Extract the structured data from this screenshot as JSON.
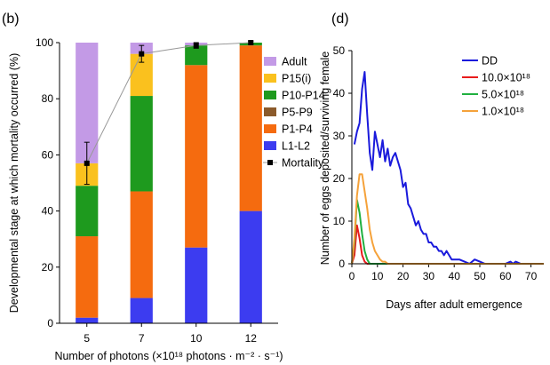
{
  "chart_data": [
    {
      "panel": "(b)",
      "type": "bar",
      "stacked": true,
      "categories": [
        "5",
        "7",
        "10",
        "12"
      ],
      "xlabel": "Number of photons (×10¹⁸ photons · m⁻² · s⁻¹)",
      "ylabel": "Developmental stage at which mortality occurred (%)",
      "ylim": [
        0,
        100
      ],
      "yticks": [
        0,
        20,
        40,
        60,
        80,
        100
      ],
      "legend_position": "right",
      "series": [
        {
          "name": "L1-L2",
          "color": "#3c3cf0",
          "values": [
            2,
            9,
            27,
            40
          ]
        },
        {
          "name": "P1-P4",
          "color": "#f56b0f",
          "values": [
            29,
            38,
            65,
            59
          ]
        },
        {
          "name": "P5-P9",
          "color": "#8b5a2b",
          "values": [
            0,
            0,
            0,
            0
          ]
        },
        {
          "name": "P10-P14",
          "color": "#1e9a1e",
          "values": [
            18,
            34,
            7,
            1
          ]
        },
        {
          "name": "P15(i)",
          "color": "#fac11e",
          "values": [
            8,
            15,
            0,
            0
          ]
        },
        {
          "name": "Adult",
          "color": "#c39ae6",
          "values": [
            43,
            4,
            1,
            0
          ]
        }
      ],
      "line": {
        "name": "Mortality",
        "color": "#999999",
        "values": [
          57,
          96,
          99,
          100
        ],
        "errors": [
          7.5,
          3,
          1,
          0.5
        ]
      },
      "legend_order": [
        "Adult",
        "P15(i)",
        "P10-P14",
        "P5-P9",
        "P1-P4",
        "L1-L2",
        "Mortality"
      ]
    },
    {
      "panel": "(d)",
      "type": "line",
      "xlabel": "Days after adult emergence",
      "ylabel": "Number of eggs deposited/surviving female",
      "xlim": [
        0,
        75
      ],
      "ylim": [
        0,
        50
      ],
      "xticks": [
        0,
        10,
        20,
        30,
        40,
        50,
        60,
        70
      ],
      "yticks": [
        0,
        10,
        20,
        30,
        40,
        50
      ],
      "legend_position": "top-right",
      "series": [
        {
          "name": "DD",
          "color": "#1a1adc",
          "x": [
            1,
            2,
            3,
            4,
            5,
            6,
            7,
            8,
            9,
            10,
            11,
            12,
            13,
            14,
            15,
            16,
            17,
            18,
            19,
            20,
            21,
            22,
            23,
            24,
            25,
            26,
            27,
            28,
            29,
            30,
            31,
            32,
            33,
            34,
            35,
            36,
            37,
            38,
            39,
            40,
            42,
            44,
            46,
            48,
            50,
            52,
            55,
            58,
            60,
            62,
            63,
            64,
            66,
            70,
            75
          ],
          "y": [
            28,
            31,
            33,
            41,
            45,
            35,
            26,
            22,
            31,
            28,
            25,
            29,
            24,
            27,
            23,
            25,
            26,
            24,
            22,
            18,
            19,
            14,
            13,
            11,
            9,
            10,
            8,
            7,
            7,
            5,
            5,
            4,
            4,
            3,
            3,
            2,
            3,
            2,
            1,
            1,
            1,
            0.5,
            0,
            1,
            0.5,
            0,
            0,
            0,
            0,
            0.5,
            0,
            0.5,
            0,
            0,
            0
          ]
        },
        {
          "name": "10.0×10¹⁸",
          "color": "#e81c1c",
          "x": [
            0,
            1,
            2,
            3,
            4,
            5,
            6,
            7,
            10,
            75
          ],
          "y": [
            0,
            2,
            9,
            6,
            2,
            0.5,
            0,
            0,
            0,
            0
          ]
        },
        {
          "name": "5.0×10¹⁸",
          "color": "#20b040",
          "x": [
            0,
            1,
            2,
            3,
            4,
            5,
            6,
            7,
            8,
            10,
            75
          ],
          "y": [
            0,
            5,
            15,
            12,
            7,
            3,
            1,
            0,
            0,
            0,
            0
          ]
        },
        {
          "name": "1.0×10¹⁸",
          "color": "#f5a23a",
          "x": [
            0,
            1,
            2,
            3,
            4,
            5,
            6,
            7,
            8,
            9,
            10,
            11,
            12,
            13,
            14,
            15,
            20,
            75
          ],
          "y": [
            0,
            6,
            16,
            21,
            21,
            17,
            13,
            8,
            5,
            3,
            2,
            1,
            0.5,
            0.5,
            0,
            0,
            0,
            0
          ]
        }
      ]
    }
  ]
}
